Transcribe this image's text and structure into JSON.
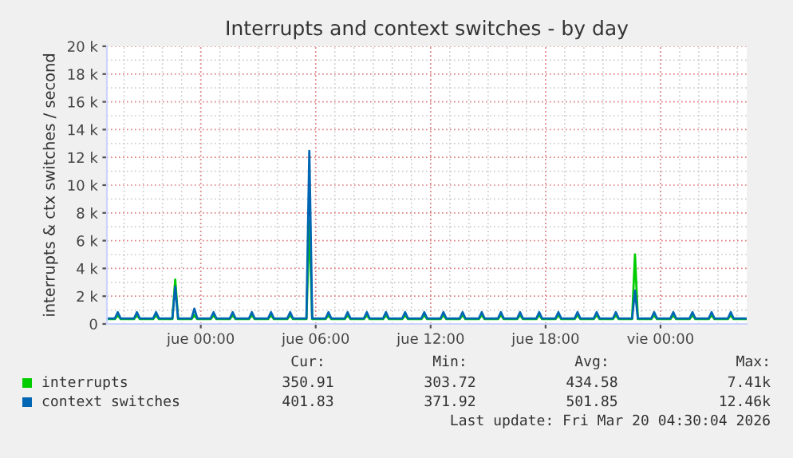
{
  "chart_data": {
    "type": "line",
    "title": "Interrupts and context switches - by day",
    "ylabel": "interrupts & ctx switches / second",
    "x": [
      "2026-03-18T19:06",
      "2026-03-18T19:31",
      "2026-03-18T19:40",
      "2026-03-18T19:49",
      "2026-03-18T20:31",
      "2026-03-18T20:40",
      "2026-03-18T20:49",
      "2026-03-18T21:31",
      "2026-03-18T21:40",
      "2026-03-18T21:49",
      "2026-03-18T22:31",
      "2026-03-18T22:40",
      "2026-03-18T22:49",
      "2026-03-18T23:31",
      "2026-03-18T23:40",
      "2026-03-18T23:49",
      "2026-03-19T00:31",
      "2026-03-19T00:40",
      "2026-03-19T00:49",
      "2026-03-19T01:31",
      "2026-03-19T01:40",
      "2026-03-19T01:49",
      "2026-03-19T02:31",
      "2026-03-19T02:40",
      "2026-03-19T02:49",
      "2026-03-19T03:31",
      "2026-03-19T03:40",
      "2026-03-19T03:49",
      "2026-03-19T04:31",
      "2026-03-19T04:40",
      "2026-03-19T04:49",
      "2026-03-19T05:31",
      "2026-03-19T05:40",
      "2026-03-19T05:49",
      "2026-03-19T06:31",
      "2026-03-19T06:40",
      "2026-03-19T06:49",
      "2026-03-19T07:31",
      "2026-03-19T07:40",
      "2026-03-19T07:49",
      "2026-03-19T08:31",
      "2026-03-19T08:40",
      "2026-03-19T08:49",
      "2026-03-19T09:31",
      "2026-03-19T09:40",
      "2026-03-19T09:49",
      "2026-03-19T10:31",
      "2026-03-19T10:40",
      "2026-03-19T10:49",
      "2026-03-19T11:31",
      "2026-03-19T11:40",
      "2026-03-19T11:49",
      "2026-03-19T12:31",
      "2026-03-19T12:40",
      "2026-03-19T12:49",
      "2026-03-19T13:31",
      "2026-03-19T13:40",
      "2026-03-19T13:49",
      "2026-03-19T14:31",
      "2026-03-19T14:40",
      "2026-03-19T14:49",
      "2026-03-19T15:31",
      "2026-03-19T15:40",
      "2026-03-19T15:49",
      "2026-03-19T16:31",
      "2026-03-19T16:40",
      "2026-03-19T16:49",
      "2026-03-19T17:31",
      "2026-03-19T17:40",
      "2026-03-19T17:49",
      "2026-03-19T18:31",
      "2026-03-19T18:40",
      "2026-03-19T18:49",
      "2026-03-19T19:31",
      "2026-03-19T19:40",
      "2026-03-19T19:49",
      "2026-03-19T20:31",
      "2026-03-19T20:40",
      "2026-03-19T20:49",
      "2026-03-19T21:31",
      "2026-03-19T21:40",
      "2026-03-19T21:49",
      "2026-03-19T22:31",
      "2026-03-19T22:40",
      "2026-03-19T22:49",
      "2026-03-19T23:31",
      "2026-03-19T23:40",
      "2026-03-19T23:49",
      "2026-03-20T00:31",
      "2026-03-20T00:40",
      "2026-03-20T00:49",
      "2026-03-20T01:31",
      "2026-03-20T01:40",
      "2026-03-20T01:49",
      "2026-03-20T02:31",
      "2026-03-20T02:40",
      "2026-03-20T02:49",
      "2026-03-20T03:31",
      "2026-03-20T03:40",
      "2026-03-20T03:49",
      "2026-03-20T04:30"
    ],
    "series": [
      {
        "name": "interrupts",
        "color": "#00cc00",
        "values": [
          350,
          350,
          650,
          350,
          350,
          650,
          350,
          350,
          650,
          350,
          350,
          3200,
          350,
          350,
          650,
          350,
          350,
          650,
          350,
          350,
          650,
          350,
          350,
          650,
          350,
          350,
          650,
          350,
          350,
          650,
          350,
          350,
          7410,
          350,
          350,
          650,
          350,
          350,
          650,
          350,
          350,
          650,
          350,
          350,
          650,
          350,
          350,
          650,
          350,
          350,
          650,
          350,
          350,
          650,
          350,
          350,
          650,
          350,
          350,
          650,
          350,
          350,
          650,
          350,
          350,
          650,
          350,
          350,
          650,
          350,
          350,
          650,
          350,
          350,
          650,
          350,
          350,
          650,
          350,
          350,
          650,
          350,
          350,
          5000,
          350,
          350,
          650,
          350,
          350,
          650,
          350,
          350,
          650,
          350,
          350,
          650,
          350,
          350,
          650,
          350,
          350
        ]
      },
      {
        "name": "context switches",
        "color": "#0066b3",
        "values": [
          400,
          400,
          850,
          400,
          400,
          850,
          400,
          400,
          850,
          400,
          400,
          2700,
          400,
          400,
          1100,
          400,
          400,
          850,
          400,
          400,
          850,
          400,
          400,
          850,
          400,
          400,
          850,
          400,
          400,
          850,
          400,
          400,
          12460,
          400,
          400,
          850,
          400,
          400,
          850,
          400,
          400,
          850,
          400,
          400,
          850,
          400,
          400,
          850,
          400,
          400,
          850,
          400,
          400,
          850,
          400,
          400,
          850,
          400,
          400,
          850,
          400,
          400,
          850,
          400,
          400,
          850,
          400,
          400,
          850,
          400,
          400,
          850,
          400,
          400,
          850,
          400,
          400,
          850,
          400,
          400,
          850,
          400,
          400,
          2400,
          400,
          400,
          850,
          400,
          400,
          850,
          400,
          400,
          850,
          400,
          400,
          850,
          400,
          400,
          850,
          400,
          400
        ]
      }
    ],
    "xlim": [
      "2026-03-18T19:06",
      "2026-03-20T04:30"
    ],
    "xticks": [
      {
        "value": "2026-03-19T00:00",
        "label": "jue 00:00"
      },
      {
        "value": "2026-03-19T06:00",
        "label": "jue 06:00"
      },
      {
        "value": "2026-03-19T12:00",
        "label": "jue 12:00"
      },
      {
        "value": "2026-03-19T18:00",
        "label": "jue 18:00"
      },
      {
        "value": "2026-03-20T00:00",
        "label": "vie 00:00"
      }
    ],
    "ylim": [
      0,
      20000
    ],
    "yticks": [
      {
        "value": 0,
        "label": "0"
      },
      {
        "value": 2000,
        "label": "2 k"
      },
      {
        "value": 4000,
        "label": "4 k"
      },
      {
        "value": 6000,
        "label": "6 k"
      },
      {
        "value": 8000,
        "label": "8 k"
      },
      {
        "value": 10000,
        "label": "10 k"
      },
      {
        "value": 12000,
        "label": "12 k"
      },
      {
        "value": 14000,
        "label": "14 k"
      },
      {
        "value": 16000,
        "label": "16 k"
      },
      {
        "value": 18000,
        "label": "18 k"
      },
      {
        "value": 20000,
        "label": "20 k"
      }
    ],
    "grid": true,
    "legend": "bottom",
    "annotations": [
      "Cur:",
      "Min:",
      "Avg:",
      "Max:",
      "350.91",
      "303.72",
      "434.58",
      "7.41k",
      "401.83",
      "371.92",
      "501.85",
      "12.46k",
      "Last update: Fri Mar 20 04:30:04 2026"
    ]
  }
}
